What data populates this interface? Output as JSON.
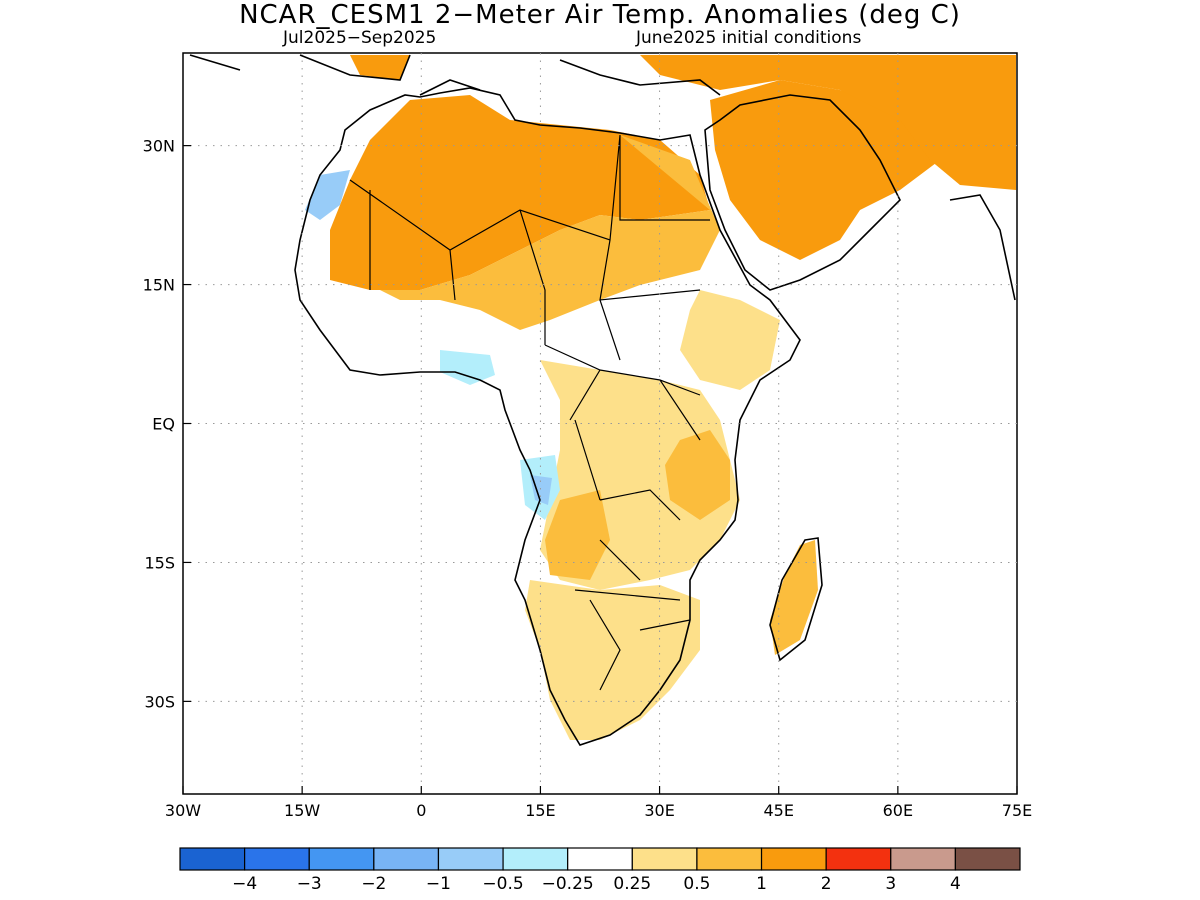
{
  "title": "NCAR_CESM1 2−Meter Air Temp. Anomalies (deg C)",
  "period": "Jul2025−Sep2025",
  "initial_conditions": "June2025 initial conditions",
  "axes": {
    "x_range": [
      -30,
      75
    ],
    "y_range": [
      -40,
      40
    ],
    "x_ticks": [
      {
        "value": -30,
        "label": "30W"
      },
      {
        "value": -15,
        "label": "15W"
      },
      {
        "value": 0,
        "label": "0"
      },
      {
        "value": 15,
        "label": "15E"
      },
      {
        "value": 30,
        "label": "30E"
      },
      {
        "value": 45,
        "label": "45E"
      },
      {
        "value": 60,
        "label": "60E"
      },
      {
        "value": 75,
        "label": "75E"
      }
    ],
    "y_ticks": [
      {
        "value": 30,
        "label": "30N"
      },
      {
        "value": 15,
        "label": "15N"
      },
      {
        "value": 0,
        "label": "EQ"
      },
      {
        "value": -15,
        "label": "15S"
      },
      {
        "value": -30,
        "label": "30S"
      }
    ],
    "grid": "dotted"
  },
  "colorbar": {
    "colors": [
      "#1a63d2",
      "#2a74ea",
      "#4496f2",
      "#78b4f5",
      "#98ccf8",
      "#b3eefb",
      "#ffffff",
      "#fde08a",
      "#fbbd3d",
      "#f99b0d",
      "#f3310f",
      "#c99a8d",
      "#7a5045"
    ],
    "labels": [
      "−4",
      "−3",
      "−2",
      "−1",
      "−0.5",
      "−0.25",
      "0.25",
      "0.5",
      "1",
      "2",
      "3",
      "4"
    ]
  }
}
